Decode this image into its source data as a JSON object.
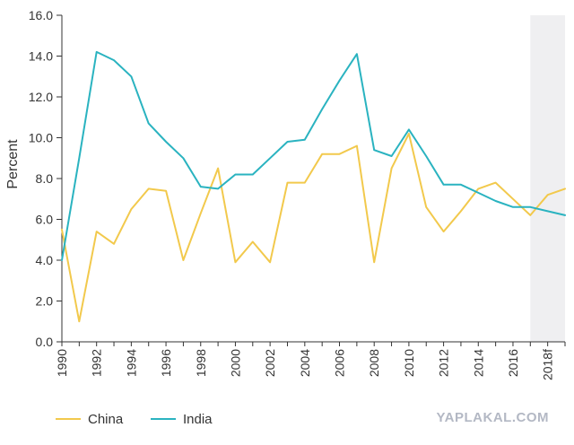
{
  "chart_data": {
    "type": "line",
    "ylabel": "Percent",
    "ylim": [
      0,
      16
    ],
    "yticks": [
      "0.0",
      "2.0",
      "4.0",
      "6.0",
      "8.0",
      "10.0",
      "12.0",
      "14.0",
      "16.0"
    ],
    "xticks": [
      "1990",
      "1992",
      "1994",
      "1996",
      "1998",
      "2000",
      "2002",
      "2004",
      "2006",
      "2008",
      "2010",
      "2012",
      "2014",
      "2016",
      "2018f"
    ],
    "x": [
      1990,
      1991,
      1992,
      1993,
      1994,
      1995,
      1996,
      1997,
      1998,
      1999,
      2000,
      2001,
      2002,
      2003,
      2004,
      2005,
      2006,
      2007,
      2008,
      2009,
      2010,
      2011,
      2012,
      2013,
      2014,
      2015,
      2016,
      2017,
      2018,
      2019
    ],
    "shaded_from": 2017,
    "series": [
      {
        "name": "China",
        "color": "#f2c94c",
        "values": [
          5.5,
          1.0,
          5.4,
          4.8,
          6.5,
          7.5,
          7.4,
          4.0,
          6.3,
          8.5,
          3.9,
          4.9,
          3.9,
          7.8,
          7.8,
          9.2,
          9.2,
          9.6,
          3.9,
          8.5,
          10.2,
          6.6,
          5.4,
          6.4,
          7.5,
          7.8,
          7.0,
          6.2,
          7.2,
          7.5
        ]
      },
      {
        "name": "India",
        "color": "#2ab3c0",
        "values": [
          4.0,
          9.0,
          14.2,
          13.8,
          13.0,
          10.7,
          9.8,
          9.0,
          7.6,
          7.5,
          8.2,
          8.2,
          9.0,
          9.8,
          9.9,
          11.4,
          12.8,
          14.1,
          9.4,
          9.1,
          10.4,
          9.1,
          7.7,
          7.7,
          7.3,
          6.9,
          6.6,
          6.6,
          6.4,
          6.2
        ]
      }
    ],
    "legend_position": "bottom-left"
  },
  "watermark": "YAPLAKAL.COM"
}
